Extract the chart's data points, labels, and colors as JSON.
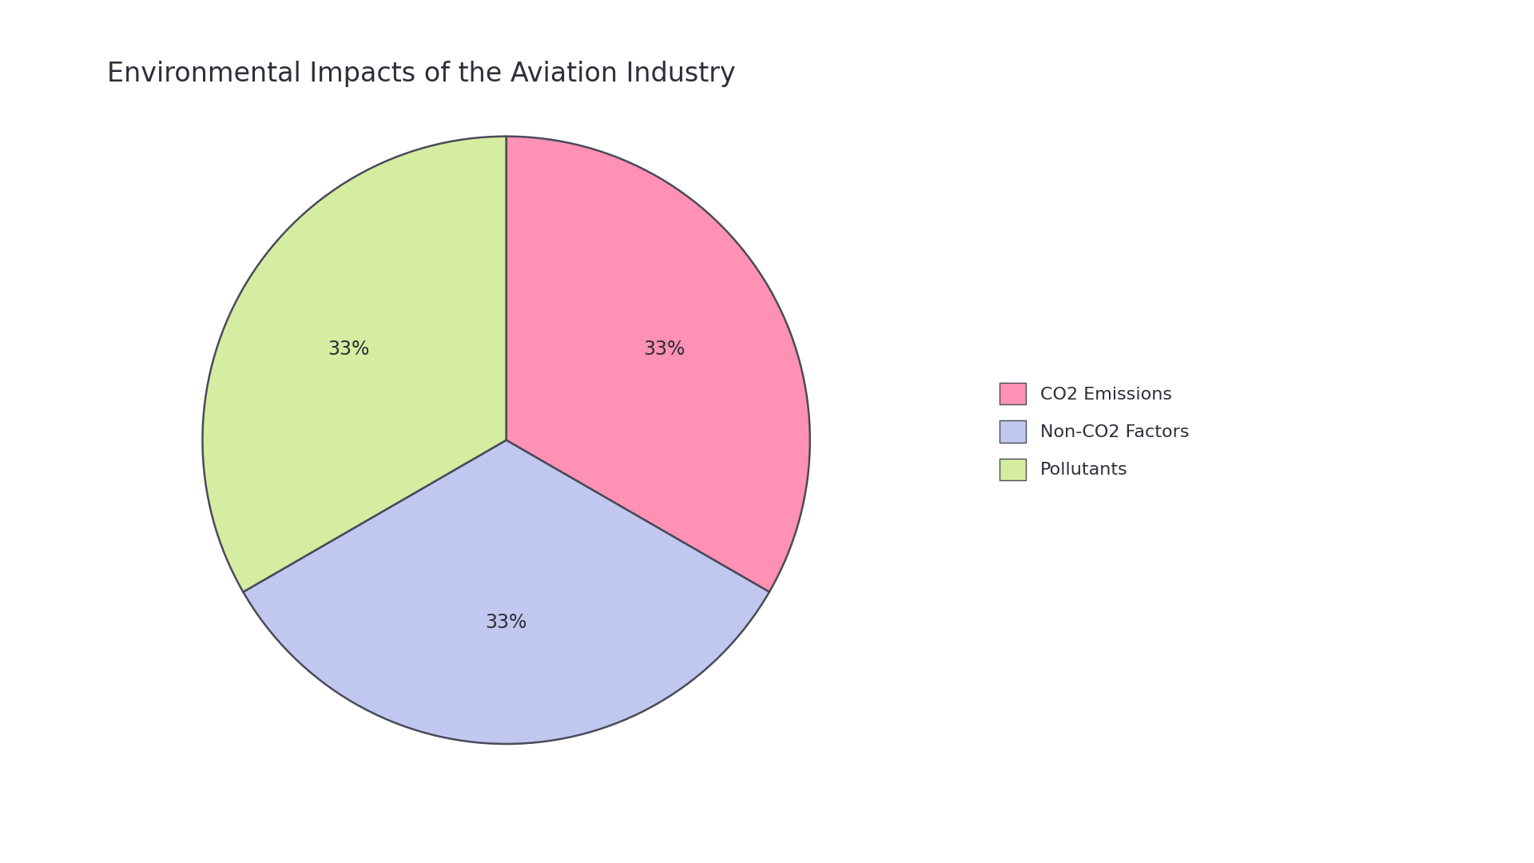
{
  "title": "Environmental Impacts of the Aviation Industry",
  "labels": [
    "CO2 Emissions",
    "Non-CO2 Factors",
    "Pollutants"
  ],
  "values": [
    33.33,
    33.34,
    33.33
  ],
  "colors": [
    "#FF91B4",
    "#C0C8F0",
    "#D4EDA0"
  ],
  "edge_color": "#4a4a5a",
  "edge_width": 1.8,
  "autopct_fontsize": 17,
  "title_fontsize": 24,
  "legend_fontsize": 16,
  "background_color": "#ffffff",
  "text_color": "#2e2e3a",
  "startangle": 90,
  "pctdistance": 0.6
}
